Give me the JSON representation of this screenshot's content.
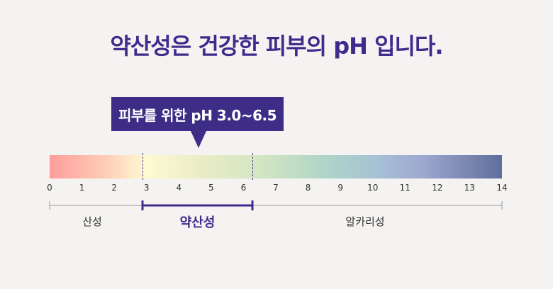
{
  "title": "약산성은 건강한 피부의 pH 입니다.",
  "callout": "피부를 위한 pH 3.0~6.5",
  "scale": {
    "min": 0,
    "max": 14,
    "ticks": [
      "0",
      "1",
      "2",
      "3",
      "4",
      "5",
      "6",
      "7",
      "8",
      "9",
      "10",
      "11",
      "12",
      "13",
      "14"
    ]
  },
  "ranges": {
    "acidic": "산성",
    "weak_acidic": "약산성",
    "alkaline": "알카리성"
  },
  "chart_data": {
    "type": "ph-scale",
    "domain": [
      0,
      14
    ],
    "highlight_range": [
      3.0,
      6.5
    ],
    "segments": [
      {
        "label": "산성",
        "from": 0,
        "to": 3
      },
      {
        "label": "약산성",
        "from": 3,
        "to": 6.5
      },
      {
        "label": "알카리성",
        "from": 6.5,
        "to": 14
      }
    ]
  },
  "colors": {
    "accent": "#3f2b8c",
    "callout_bg": "#3d2d87",
    "background": "#f4f3f1",
    "gradient_start": "#fd9d9a",
    "gradient_end": "#5f6f9a"
  }
}
